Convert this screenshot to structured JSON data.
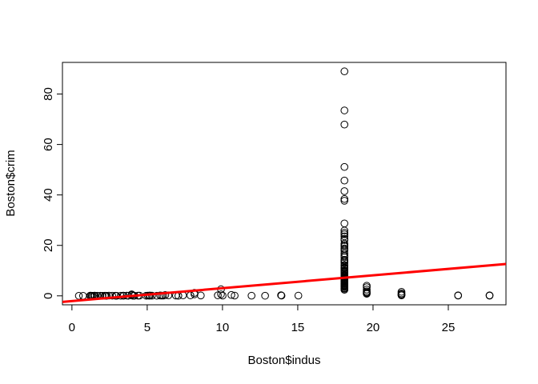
{
  "chart_data": {
    "type": "scatter",
    "x_label": "Boston$indus",
    "y_label": "Boston$crim",
    "x": [
      0.46,
      0.74,
      1.21,
      1.22,
      1.25,
      1.32,
      1.38,
      1.47,
      1.52,
      1.69,
      1.89,
      2.01,
      2.03,
      2.18,
      2.24,
      2.31,
      2.46,
      2.68,
      2.89,
      2.95,
      2.97,
      3.24,
      3.41,
      3.44,
      3.64,
      3.75,
      3.97,
      3.97,
      4.05,
      4.15,
      4.39,
      4.49,
      4.93,
      5.04,
      5.13,
      5.19,
      5.32,
      5.64,
      5.86,
      5.96,
      6.07,
      6.2,
      6.41,
      6.91,
      7.07,
      7.38,
      7.87,
      8.14,
      8.14,
      8.56,
      9.69,
      9.9,
      9.9,
      10.01,
      10.59,
      10.81,
      11.93,
      12.83,
      13.89,
      13.92,
      15.04,
      18.1,
      18.1,
      18.1,
      18.1,
      18.1,
      18.1,
      18.1,
      18.1,
      18.1,
      18.1,
      18.1,
      18.1,
      18.1,
      18.1,
      18.1,
      18.1,
      18.1,
      18.1,
      18.1,
      18.1,
      18.1,
      18.1,
      18.1,
      18.1,
      18.1,
      18.1,
      18.1,
      18.1,
      18.1,
      18.1,
      18.1,
      18.1,
      18.1,
      18.1,
      18.1,
      18.1,
      18.1,
      18.1,
      18.1,
      18.1,
      18.1,
      18.1,
      18.1,
      18.1,
      18.1,
      18.1,
      18.1,
      18.1,
      18.1,
      18.1,
      18.1,
      18.1,
      18.1,
      18.1,
      18.1,
      18.1,
      18.1,
      18.1,
      18.1,
      18.1,
      18.1,
      18.1,
      19.58,
      19.58,
      19.58,
      19.58,
      19.58,
      19.58,
      19.58,
      21.89,
      21.89,
      21.89,
      21.89,
      21.89,
      25.65,
      25.65,
      27.74,
      27.74
    ],
    "values": [
      0.01,
      0.02,
      0.05,
      0.1,
      0.04,
      0.03,
      0.02,
      0.04,
      0.1,
      0.03,
      0.06,
      0.02,
      0.01,
      0.06,
      0.04,
      0.01,
      0.1,
      0.06,
      0.05,
      0.02,
      0.02,
      0.03,
      0.08,
      0.06,
      0.1,
      0.03,
      0.6,
      0.3,
      0.04,
      0.05,
      0.07,
      0.1,
      0.05,
      0.1,
      0.08,
      0.12,
      0.07,
      0.05,
      0.15,
      0.1,
      0.1,
      0.3,
      0.2,
      0.1,
      0.03,
      0.2,
      0.2,
      1.2,
      0.6,
      0.15,
      0.2,
      2.6,
      0.6,
      0.1,
      0.35,
      0.1,
      0.06,
      0.05,
      0.25,
      0.1,
      0.1,
      88.98,
      73.5,
      67.9,
      51.1,
      45.7,
      41.5,
      38.4,
      37.7,
      28.7,
      25.9,
      25.0,
      24.4,
      23.6,
      22.6,
      22.1,
      20.7,
      20.1,
      19.6,
      18.8,
      18.5,
      17.9,
      16.8,
      15.9,
      15.3,
      14.3,
      14.1,
      13.7,
      13.1,
      12.2,
      12.0,
      11.2,
      11.0,
      10.8,
      10.2,
      9.9,
      9.7,
      9.3,
      9.0,
      8.7,
      8.2,
      8.0,
      7.8,
      7.4,
      7.0,
      6.7,
      6.4,
      6.0,
      5.8,
      5.7,
      5.3,
      5.0,
      4.8,
      4.5,
      4.3,
      4.1,
      3.8,
      3.7,
      3.5,
      3.1,
      2.9,
      2.8,
      2.4,
      4.0,
      3.4,
      2.5,
      1.8,
      1.4,
      1.1,
      0.8,
      1.6,
      1.0,
      0.6,
      0.3,
      0.2,
      0.1,
      0.2,
      0.07,
      0.2
    ],
    "color": "#000000",
    "fit_line": {
      "intercept": -2.0637,
      "slope": 0.5098,
      "color": "#ff0000"
    },
    "xlim": [
      -0.63,
      28.83
    ],
    "xticks": [
      0,
      5,
      10,
      15,
      20,
      25
    ],
    "ylim": [
      -3.55,
      92.54
    ],
    "yticks": [
      0,
      20,
      40,
      60,
      80
    ]
  }
}
